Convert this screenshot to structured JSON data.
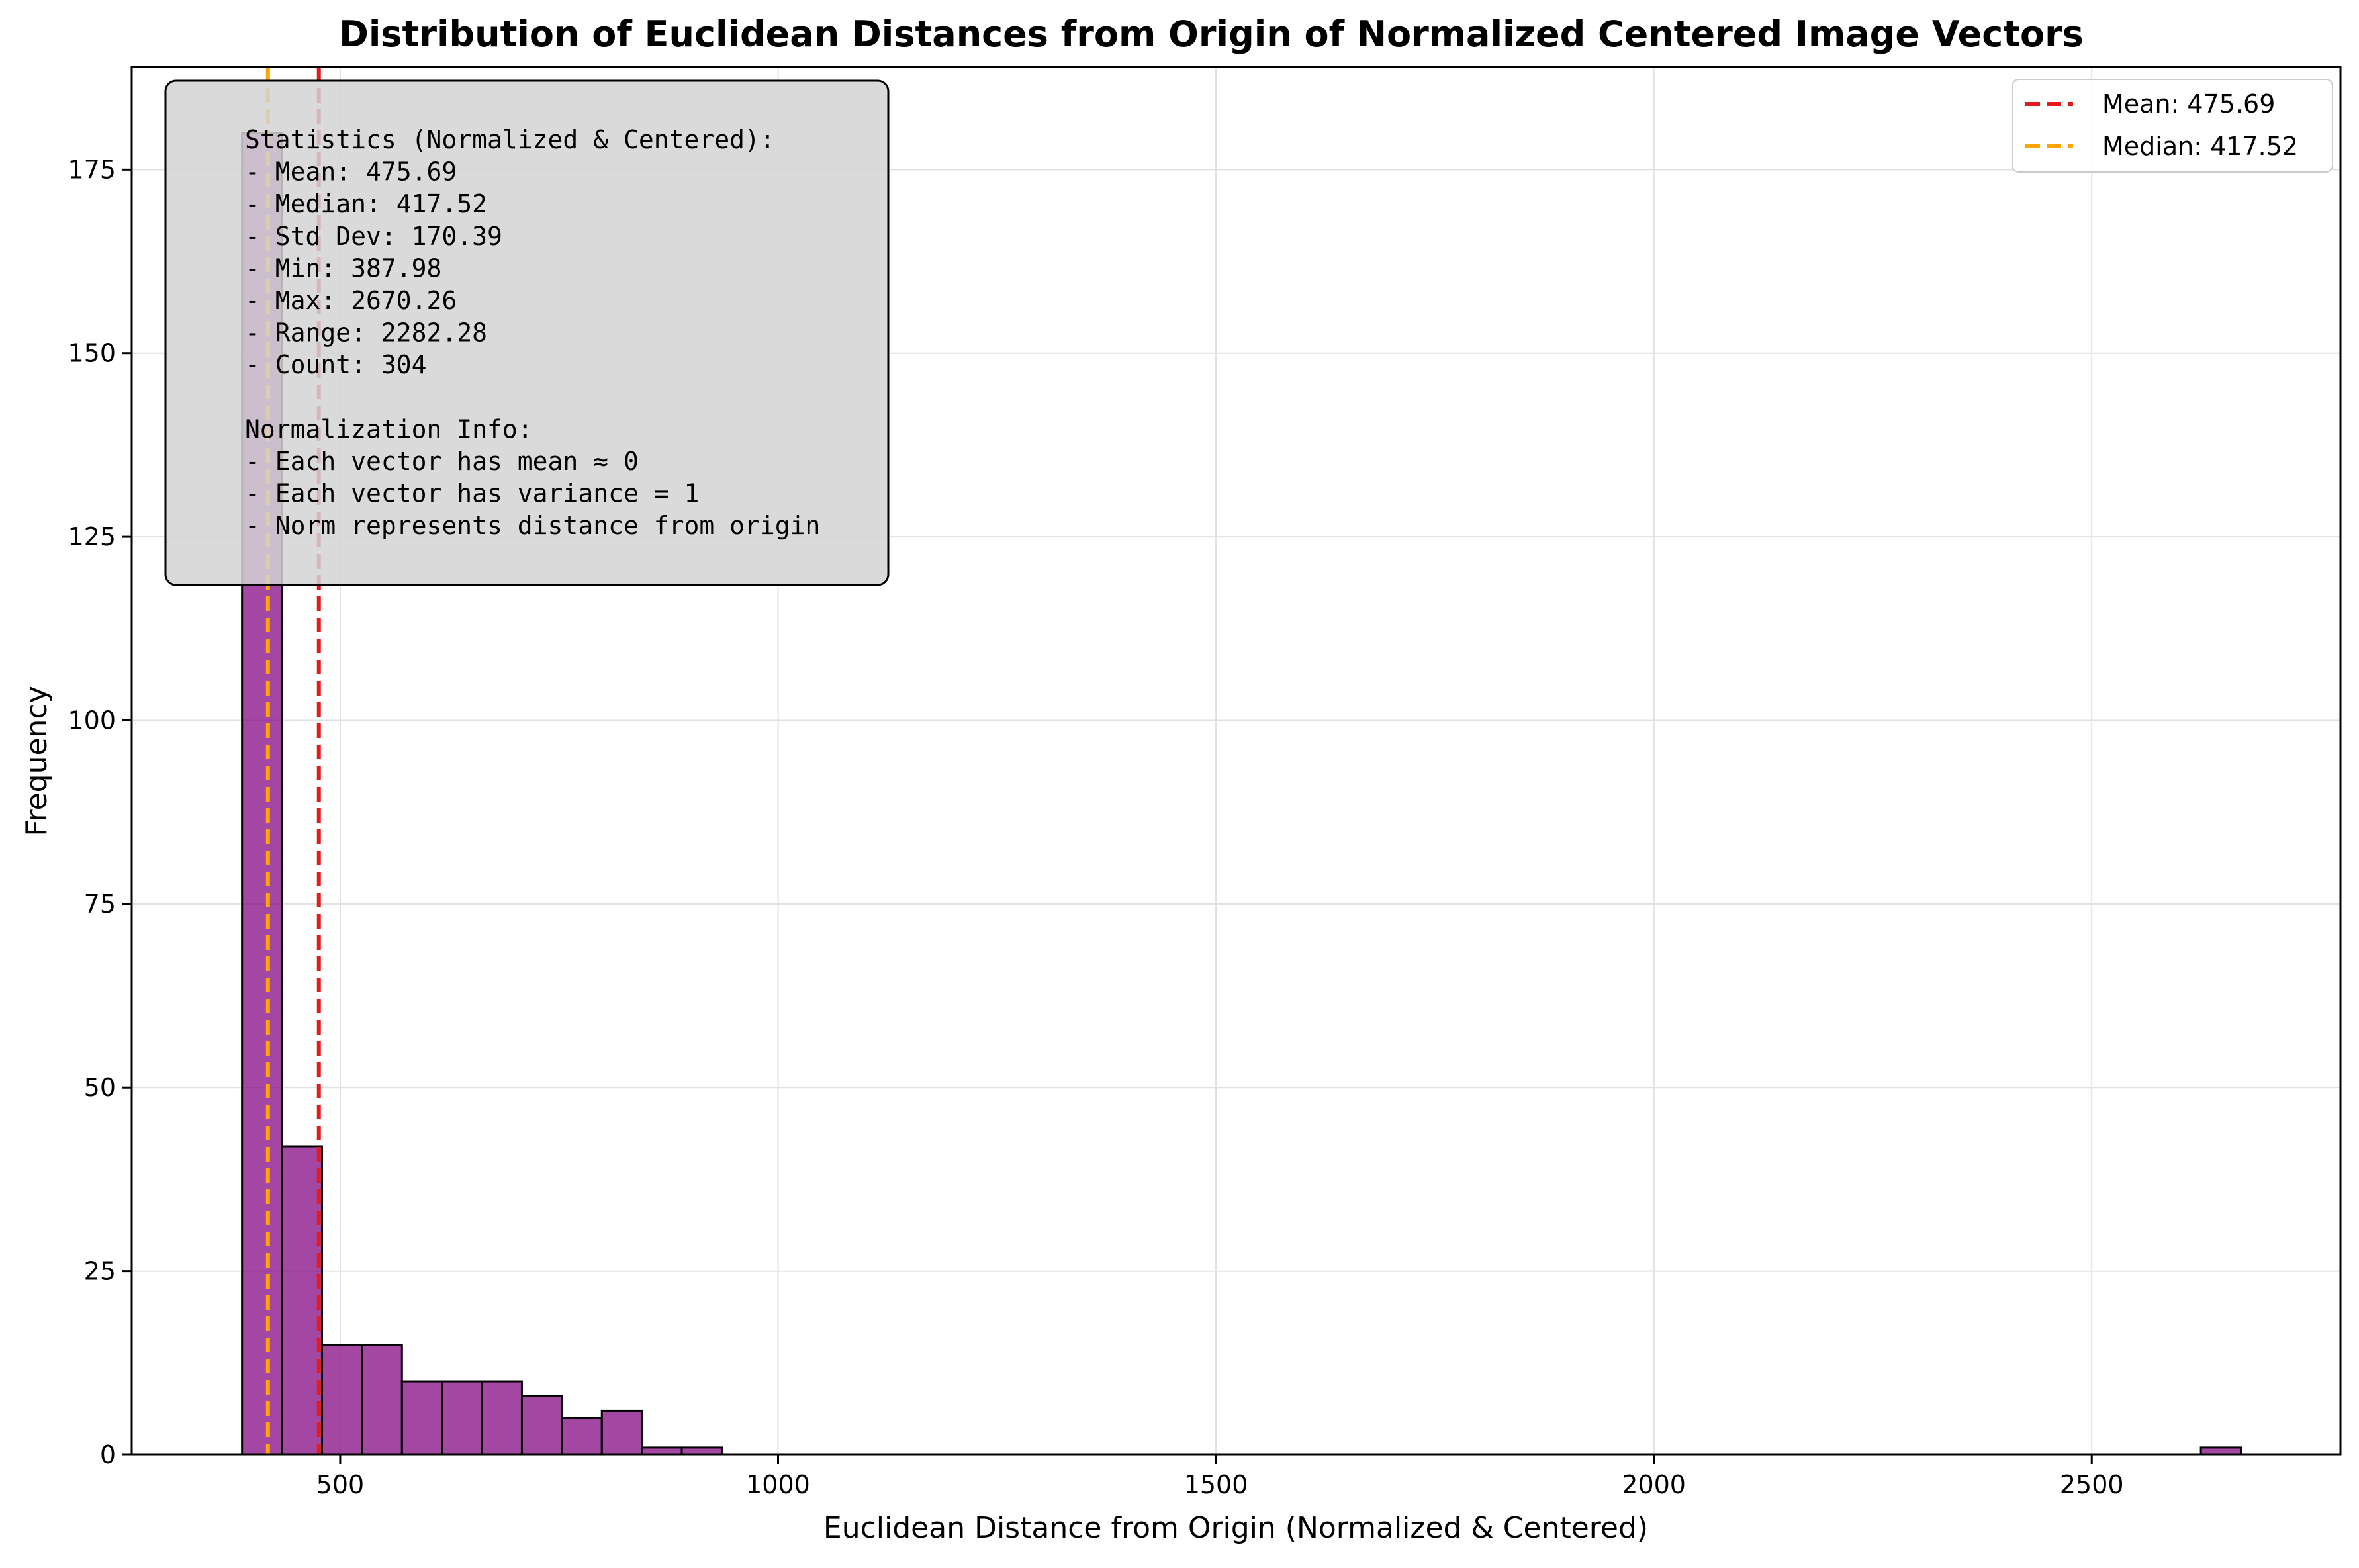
{
  "chart_data": {
    "type": "bar",
    "title": "Distribution of Euclidean Distances from Origin of Normalized Centered Image Vectors",
    "xlabel": "Euclidean Distance from Origin (Normalized & Centered)",
    "ylabel": "Frequency",
    "xlim": [
      262,
      2784
    ],
    "ylim": [
      0,
      189
    ],
    "xticks": [
      500,
      1000,
      1500,
      2000,
      2500
    ],
    "yticks": [
      0,
      25,
      50,
      75,
      100,
      125,
      150,
      175
    ],
    "grid": true,
    "bar_color": "#800080",
    "bar_edge_color": "#000000",
    "bins": [
      {
        "start": 387.98,
        "end": 433.62,
        "count": 180
      },
      {
        "start": 433.62,
        "end": 479.27,
        "count": 42
      },
      {
        "start": 479.27,
        "end": 524.91,
        "count": 15
      },
      {
        "start": 524.91,
        "end": 570.56,
        "count": 15
      },
      {
        "start": 570.56,
        "end": 616.2,
        "count": 10
      },
      {
        "start": 616.2,
        "end": 661.85,
        "count": 10
      },
      {
        "start": 661.85,
        "end": 707.49,
        "count": 10
      },
      {
        "start": 707.49,
        "end": 753.14,
        "count": 8
      },
      {
        "start": 753.14,
        "end": 798.78,
        "count": 5
      },
      {
        "start": 798.78,
        "end": 844.43,
        "count": 6
      },
      {
        "start": 844.43,
        "end": 890.07,
        "count": 1
      },
      {
        "start": 890.07,
        "end": 935.72,
        "count": 1
      },
      {
        "start": 2624.61,
        "end": 2670.26,
        "count": 1
      }
    ],
    "lines": [
      {
        "name": "Mean: 475.69",
        "x": 475.69,
        "color": "#e41a1c"
      },
      {
        "name": "Median: 417.52",
        "x": 417.52,
        "color": "#ffa500"
      }
    ],
    "legend_position": "top-right",
    "annotation": {
      "lines": [
        "Statistics (Normalized & Centered):",
        "- Mean: 475.69",
        "- Median: 417.52",
        "- Std Dev: 170.39",
        "- Min: 387.98",
        "- Max: 2670.26",
        "- Range: 2282.28",
        "- Count: 304",
        "",
        "Normalization Info:",
        "- Each vector has mean ≈ 0",
        "- Each vector has variance = 1",
        "- Norm represents distance from origin"
      ],
      "position": "top-left"
    }
  }
}
